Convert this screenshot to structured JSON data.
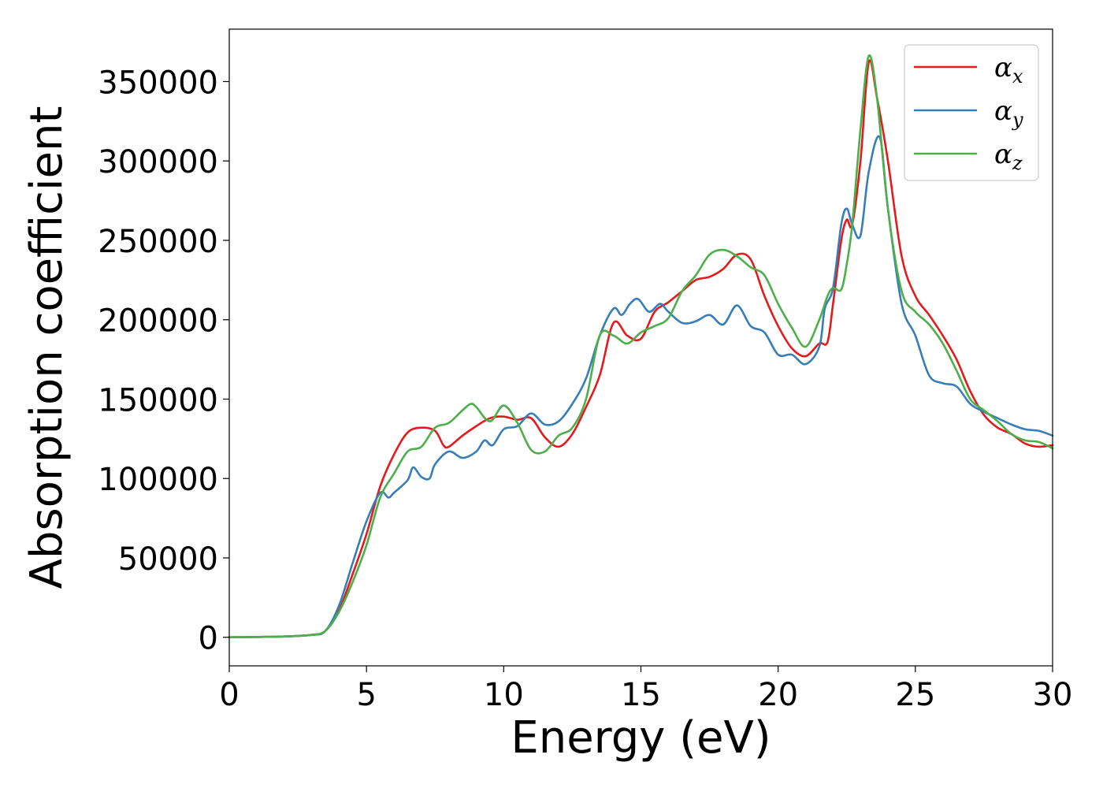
{
  "chart_data": {
    "type": "line",
    "xlabel": "Energy (eV)",
    "ylabel": "Absorption coefficient",
    "xlim": [
      0,
      30
    ],
    "ylim": [
      -18000,
      383000
    ],
    "xticks": [
      0,
      5,
      10,
      15,
      20,
      25,
      30
    ],
    "yticks": [
      0,
      50000,
      100000,
      150000,
      200000,
      250000,
      300000,
      350000
    ],
    "grid": false,
    "legend_position": "top-right",
    "series": [
      {
        "name": "αx",
        "symbol": "α",
        "subscript": "x",
        "color": "#e41a1c",
        "points": [
          [
            0,
            0
          ],
          [
            1,
            200
          ],
          [
            2,
            500
          ],
          [
            3,
            1500
          ],
          [
            3.5,
            4000
          ],
          [
            4,
            17000
          ],
          [
            4.5,
            40000
          ],
          [
            5,
            65000
          ],
          [
            5.5,
            95000
          ],
          [
            6,
            115000
          ],
          [
            6.5,
            129000
          ],
          [
            7,
            132000
          ],
          [
            7.5,
            130000
          ],
          [
            7.8,
            121000
          ],
          [
            8,
            120000
          ],
          [
            8.5,
            127000
          ],
          [
            9,
            133000
          ],
          [
            9.5,
            138000
          ],
          [
            10,
            139000
          ],
          [
            10.5,
            137000
          ],
          [
            11,
            138000
          ],
          [
            11.5,
            126000
          ],
          [
            12,
            120000
          ],
          [
            12.5,
            128000
          ],
          [
            13,
            145000
          ],
          [
            13.5,
            165000
          ],
          [
            14,
            198000
          ],
          [
            14.5,
            190000
          ],
          [
            15,
            188000
          ],
          [
            15.5,
            205000
          ],
          [
            16,
            211000
          ],
          [
            16.5,
            218000
          ],
          [
            17,
            225000
          ],
          [
            17.5,
            227000
          ],
          [
            18,
            232000
          ],
          [
            18.5,
            241000
          ],
          [
            19,
            238000
          ],
          [
            19.5,
            215000
          ],
          [
            20,
            196000
          ],
          [
            20.5,
            182000
          ],
          [
            21,
            177000
          ],
          [
            21.5,
            185000
          ],
          [
            21.8,
            186000
          ],
          [
            22,
            210000
          ],
          [
            22.3,
            250000
          ],
          [
            22.5,
            263000
          ],
          [
            22.7,
            260000
          ],
          [
            23,
            300000
          ],
          [
            23.3,
            362000
          ],
          [
            23.6,
            340000
          ],
          [
            24,
            300000
          ],
          [
            24.5,
            240000
          ],
          [
            25,
            215000
          ],
          [
            25.5,
            203000
          ],
          [
            26,
            190000
          ],
          [
            26.5,
            175000
          ],
          [
            27,
            155000
          ],
          [
            27.5,
            140000
          ],
          [
            28,
            132000
          ],
          [
            28.5,
            128000
          ],
          [
            29,
            122000
          ],
          [
            29.5,
            120000
          ],
          [
            30,
            121000
          ]
        ]
      },
      {
        "name": "αy",
        "symbol": "α",
        "subscript": "y",
        "color": "#377eb8",
        "points": [
          [
            0,
            0
          ],
          [
            1,
            200
          ],
          [
            2,
            500
          ],
          [
            3,
            1500
          ],
          [
            3.5,
            4000
          ],
          [
            4,
            20000
          ],
          [
            4.5,
            47000
          ],
          [
            5,
            73000
          ],
          [
            5.5,
            91000
          ],
          [
            5.8,
            88000
          ],
          [
            6,
            91000
          ],
          [
            6.5,
            99000
          ],
          [
            6.7,
            107000
          ],
          [
            7,
            101000
          ],
          [
            7.3,
            100000
          ],
          [
            7.5,
            109000
          ],
          [
            8,
            117000
          ],
          [
            8.5,
            113000
          ],
          [
            9,
            117000
          ],
          [
            9.3,
            124000
          ],
          [
            9.6,
            121000
          ],
          [
            10,
            131000
          ],
          [
            10.5,
            133000
          ],
          [
            11,
            141000
          ],
          [
            11.5,
            134000
          ],
          [
            12,
            136000
          ],
          [
            12.5,
            147000
          ],
          [
            13,
            163000
          ],
          [
            13.5,
            190000
          ],
          [
            14,
            207000
          ],
          [
            14.3,
            203000
          ],
          [
            14.6,
            210000
          ],
          [
            14.9,
            213000
          ],
          [
            15.3,
            205000
          ],
          [
            15.7,
            210000
          ],
          [
            16,
            205000
          ],
          [
            16.5,
            198000
          ],
          [
            17,
            199000
          ],
          [
            17.5,
            203000
          ],
          [
            18,
            197000
          ],
          [
            18.5,
            209000
          ],
          [
            19,
            196000
          ],
          [
            19.5,
            192000
          ],
          [
            20,
            178000
          ],
          [
            20.5,
            178000
          ],
          [
            21,
            172000
          ],
          [
            21.5,
            183000
          ],
          [
            21.7,
            207000
          ],
          [
            22,
            220000
          ],
          [
            22.3,
            260000
          ],
          [
            22.5,
            270000
          ],
          [
            22.7,
            260000
          ],
          [
            23,
            253000
          ],
          [
            23.3,
            293000
          ],
          [
            23.7,
            315000
          ],
          [
            24,
            270000
          ],
          [
            24.5,
            210000
          ],
          [
            25,
            190000
          ],
          [
            25.5,
            165000
          ],
          [
            26,
            160000
          ],
          [
            26.5,
            158000
          ],
          [
            27,
            147000
          ],
          [
            27.5,
            142000
          ],
          [
            28,
            138000
          ],
          [
            28.5,
            134000
          ],
          [
            29,
            131000
          ],
          [
            29.5,
            130000
          ],
          [
            30,
            127000
          ]
        ]
      },
      {
        "name": "αz",
        "symbol": "α",
        "subscript": "z",
        "color": "#4daf4a",
        "points": [
          [
            0,
            0
          ],
          [
            1,
            200
          ],
          [
            2,
            500
          ],
          [
            3,
            1500
          ],
          [
            3.5,
            4000
          ],
          [
            4,
            16000
          ],
          [
            4.5,
            35000
          ],
          [
            5,
            58000
          ],
          [
            5.5,
            88000
          ],
          [
            6,
            103000
          ],
          [
            6.5,
            117000
          ],
          [
            7,
            120000
          ],
          [
            7.5,
            132000
          ],
          [
            8,
            135000
          ],
          [
            8.5,
            143000
          ],
          [
            8.8,
            147000
          ],
          [
            9,
            145000
          ],
          [
            9.5,
            136000
          ],
          [
            10,
            146000
          ],
          [
            10.5,
            135000
          ],
          [
            11,
            118000
          ],
          [
            11.5,
            117000
          ],
          [
            12,
            127000
          ],
          [
            12.5,
            132000
          ],
          [
            13,
            150000
          ],
          [
            13.5,
            190000
          ],
          [
            14,
            190000
          ],
          [
            14.5,
            185000
          ],
          [
            15,
            192000
          ],
          [
            15.5,
            196000
          ],
          [
            16,
            201000
          ],
          [
            16.5,
            218000
          ],
          [
            17,
            228000
          ],
          [
            17.5,
            241000
          ],
          [
            18,
            244000
          ],
          [
            18.5,
            240000
          ],
          [
            19,
            233000
          ],
          [
            19.5,
            228000
          ],
          [
            20,
            210000
          ],
          [
            20.5,
            195000
          ],
          [
            21,
            183000
          ],
          [
            21.5,
            200000
          ],
          [
            21.8,
            215000
          ],
          [
            22,
            220000
          ],
          [
            22.3,
            219000
          ],
          [
            22.5,
            235000
          ],
          [
            22.7,
            260000
          ],
          [
            23,
            320000
          ],
          [
            23.3,
            366000
          ],
          [
            23.6,
            340000
          ],
          [
            24,
            270000
          ],
          [
            24.5,
            218000
          ],
          [
            25,
            205000
          ],
          [
            25.5,
            197000
          ],
          [
            26,
            185000
          ],
          [
            26.5,
            168000
          ],
          [
            27,
            150000
          ],
          [
            27.5,
            143000
          ],
          [
            28,
            136000
          ],
          [
            28.5,
            128000
          ],
          [
            29,
            124000
          ],
          [
            29.5,
            123000
          ],
          [
            30,
            119000
          ]
        ]
      }
    ]
  }
}
